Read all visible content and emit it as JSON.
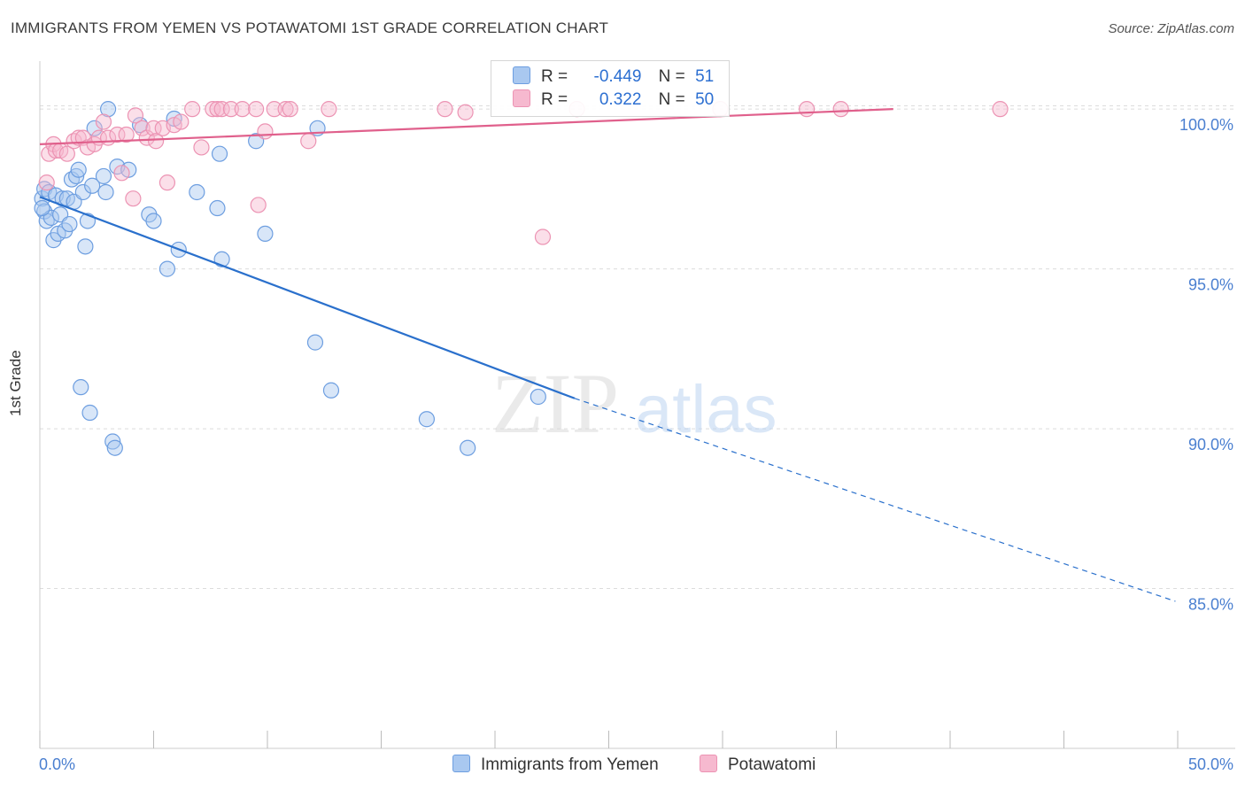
{
  "title": "IMMIGRANTS FROM YEMEN VS POTAWATOMI 1ST GRADE CORRELATION CHART",
  "source": "Source: ZipAtlas.com",
  "colors": {
    "blue_fill": "#a9c8f0",
    "blue_stroke": "#6d9ee0",
    "blue_line": "#2a70cc",
    "pink_fill": "#f6b9cf",
    "pink_stroke": "#ec93b3",
    "pink_line": "#e0608c",
    "tick_label": "#4a7fd0",
    "grid": "#dcdcdc"
  },
  "legend": {
    "r_label": "R =",
    "n_label": "N =",
    "series1": {
      "r": "-0.449",
      "n": "51"
    },
    "series2": {
      "r": "0.322",
      "n": "50"
    }
  },
  "watermark": {
    "zip": "ZIP",
    "atlas": "atlas"
  },
  "chart_data": {
    "type": "scatter",
    "title": "IMMIGRANTS FROM YEMEN VS POTAWATOMI 1ST GRADE CORRELATION CHART",
    "xlabel": "",
    "ylabel": "1st Grade",
    "xlim": [
      0,
      50
    ],
    "ylim": [
      80,
      101.5
    ],
    "x_tick_labels": [
      "0.0%",
      "50.0%"
    ],
    "y_ticks": [
      85,
      90,
      95,
      100
    ],
    "y_tick_labels": [
      "85.0%",
      "90.0%",
      "95.0%",
      "100.0%"
    ],
    "legend_position": "bottom",
    "series": [
      {
        "name": "Immigrants from Yemen",
        "color": "#a9c8f0",
        "points": [
          [
            0.1,
            97.2
          ],
          [
            0.2,
            96.8
          ],
          [
            0.2,
            97.5
          ],
          [
            0.3,
            96.5
          ],
          [
            0.4,
            97.4
          ],
          [
            0.5,
            96.6
          ],
          [
            0.6,
            95.9
          ],
          [
            0.7,
            97.3
          ],
          [
            0.8,
            96.1
          ],
          [
            0.9,
            96.7
          ],
          [
            1.0,
            97.2
          ],
          [
            1.1,
            96.2
          ],
          [
            1.2,
            97.2
          ],
          [
            1.3,
            96.4
          ],
          [
            1.4,
            97.8
          ],
          [
            1.5,
            97.1
          ],
          [
            1.6,
            97.9
          ],
          [
            1.7,
            98.1
          ],
          [
            1.8,
            91.3
          ],
          [
            1.9,
            97.4
          ],
          [
            2.0,
            95.7
          ],
          [
            2.1,
            96.5
          ],
          [
            2.2,
            90.5
          ],
          [
            2.3,
            97.6
          ],
          [
            2.4,
            99.4
          ],
          [
            2.8,
            97.9
          ],
          [
            2.9,
            97.4
          ],
          [
            3.0,
            100.0
          ],
          [
            3.2,
            89.6
          ],
          [
            3.3,
            89.4
          ],
          [
            3.4,
            98.2
          ],
          [
            3.9,
            98.1
          ],
          [
            4.4,
            99.5
          ],
          [
            4.8,
            96.7
          ],
          [
            5.0,
            96.5
          ],
          [
            5.6,
            95.0
          ],
          [
            5.9,
            99.7
          ],
          [
            6.1,
            95.6
          ],
          [
            6.9,
            97.4
          ],
          [
            7.8,
            96.9
          ],
          [
            7.9,
            98.6
          ],
          [
            8.0,
            95.3
          ],
          [
            9.5,
            99.0
          ],
          [
            9.9,
            96.1
          ],
          [
            12.1,
            92.7
          ],
          [
            12.2,
            99.4
          ],
          [
            12.8,
            91.2
          ],
          [
            17.0,
            90.3
          ],
          [
            18.8,
            89.4
          ],
          [
            21.9,
            91.0
          ],
          [
            0.1,
            96.9
          ]
        ]
      },
      {
        "name": "Potawatomi",
        "color": "#f6b9cf",
        "points": [
          [
            0.3,
            97.7
          ],
          [
            0.4,
            98.6
          ],
          [
            0.6,
            98.9
          ],
          [
            0.7,
            98.7
          ],
          [
            0.9,
            98.7
          ],
          [
            1.2,
            98.6
          ],
          [
            1.5,
            99.0
          ],
          [
            1.7,
            99.1
          ],
          [
            1.9,
            99.1
          ],
          [
            2.1,
            98.8
          ],
          [
            2.4,
            98.9
          ],
          [
            2.6,
            99.1
          ],
          [
            2.8,
            99.6
          ],
          [
            3.0,
            99.1
          ],
          [
            3.4,
            99.2
          ],
          [
            3.6,
            98.0
          ],
          [
            3.8,
            99.2
          ],
          [
            4.1,
            97.2
          ],
          [
            4.2,
            99.8
          ],
          [
            4.5,
            99.4
          ],
          [
            4.7,
            99.1
          ],
          [
            5.0,
            99.4
          ],
          [
            5.1,
            99.0
          ],
          [
            5.4,
            99.4
          ],
          [
            5.6,
            97.7
          ],
          [
            5.9,
            99.5
          ],
          [
            6.2,
            99.6
          ],
          [
            6.7,
            100.0
          ],
          [
            7.1,
            98.8
          ],
          [
            7.6,
            100.0
          ],
          [
            7.8,
            100.0
          ],
          [
            8.0,
            100.0
          ],
          [
            8.4,
            100.0
          ],
          [
            8.9,
            100.0
          ],
          [
            9.5,
            100.0
          ],
          [
            9.6,
            97.0
          ],
          [
            9.9,
            99.3
          ],
          [
            10.3,
            100.0
          ],
          [
            10.8,
            100.0
          ],
          [
            11.0,
            100.0
          ],
          [
            11.8,
            99.0
          ],
          [
            12.7,
            100.0
          ],
          [
            17.8,
            100.0
          ],
          [
            18.7,
            99.9
          ],
          [
            22.1,
            96.0
          ],
          [
            23.6,
            100.0
          ],
          [
            29.9,
            100.0
          ],
          [
            33.7,
            100.0
          ],
          [
            35.2,
            100.0
          ],
          [
            42.2,
            100.0
          ]
        ]
      }
    ],
    "trend_lines": [
      {
        "series": "Immigrants from Yemen",
        "x_start": 0,
        "y_start": 97.25,
        "x_solid_end": 23.5,
        "y_solid_end": 90.95,
        "x_dash_end": 49.9,
        "y_dash_end": 84.6
      },
      {
        "series": "Potawatomi",
        "x_start": 0,
        "y_start": 98.9,
        "x_end": 37.5,
        "y_end": 100.0
      }
    ]
  }
}
